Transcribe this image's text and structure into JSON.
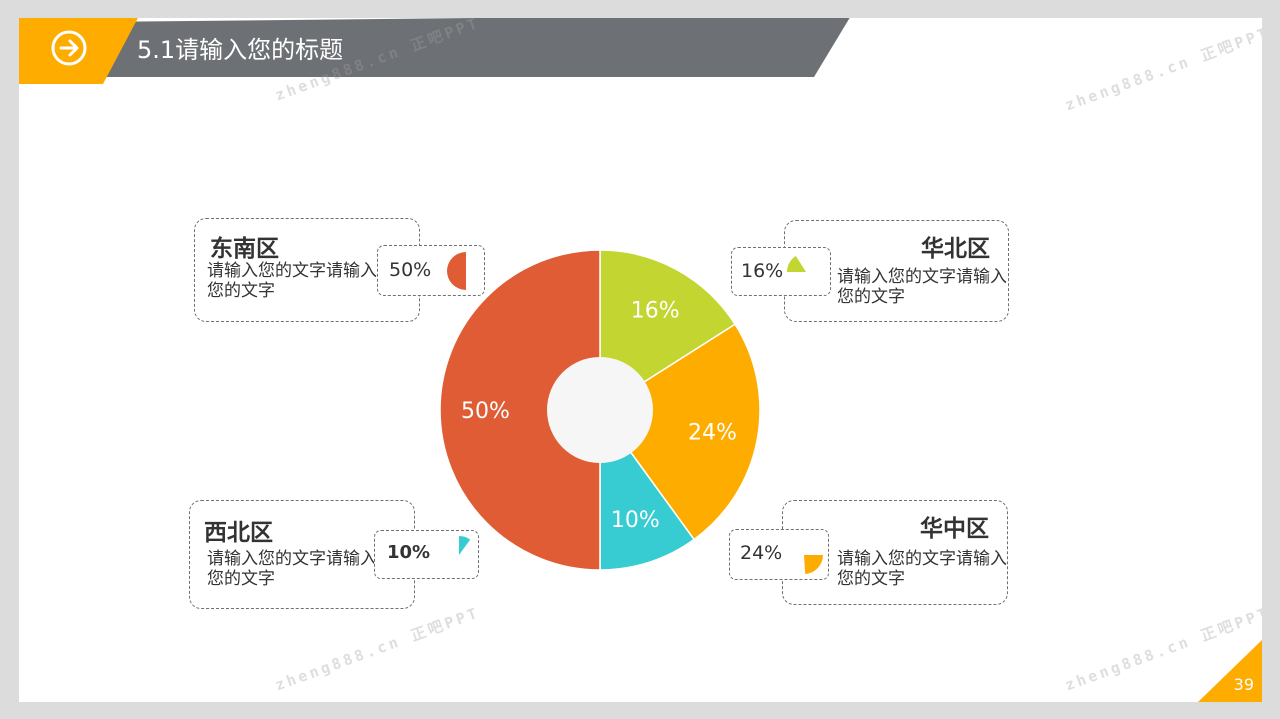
{
  "header": {
    "title": "5.1请输入您的标题"
  },
  "page_number": "39",
  "watermark": {
    "text": "zheng888.cn 正吧PPT"
  },
  "colors": {
    "orange_red": "#E05C35",
    "lime": "#C2D530",
    "amber": "#FFAC00",
    "cyan": "#36CCD2",
    "header_gray": "#6D7075",
    "header_accent": "#FFAC00"
  },
  "regions": [
    {
      "name": "东南区",
      "value_label": "50%",
      "text": "请输入您的文字请输入您的文字",
      "color": "#E05C35"
    },
    {
      "name": "华北区",
      "value_label": "16%",
      "text": "请输入您的文字请输入您的文字",
      "color": "#C2D530"
    },
    {
      "name": "西北区",
      "value_label": "10%",
      "text": "请输入您的文字请输入您的文字",
      "color": "#36CCD2"
    },
    {
      "name": "华中区",
      "value_label": "24%",
      "text": "请输入您的文字请输入您的文字",
      "color": "#FFAC00"
    }
  ],
  "chart_data": {
    "type": "pie",
    "subtype": "donut",
    "categories": [
      "华北区",
      "华中区",
      "西北区",
      "东南区"
    ],
    "values": [
      16,
      24,
      10,
      50
    ],
    "labels": [
      "16%",
      "24%",
      "10%",
      "50%"
    ],
    "colors": [
      "#C2D530",
      "#FFAC00",
      "#36CCD2",
      "#E05C35"
    ],
    "start": "12 o'clock",
    "direction": "clockwise",
    "hole_color": "#F6F6F6"
  }
}
